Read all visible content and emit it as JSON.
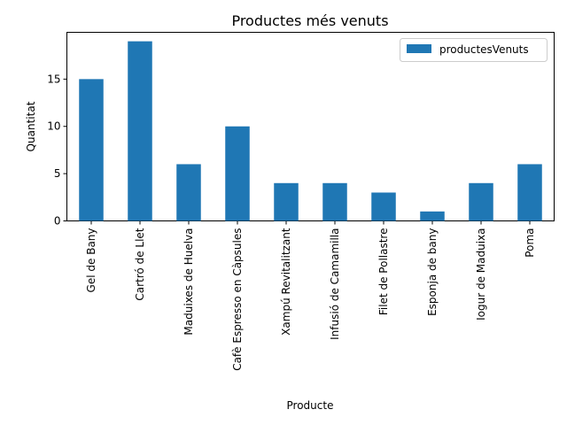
{
  "chart_data": {
    "type": "bar",
    "title": "Productes més venuts",
    "xlabel": "Producte",
    "ylabel": "Quantitat",
    "categories": [
      "Gel de Bany",
      "Cartró de Llet",
      "Maduixes de Huelva",
      "Cafè Espresso en Càpsules",
      "Xampú Revitalitzant",
      "Infusió de Camamilla",
      "Filet de Pollastre",
      "Esponja de bany",
      "Iogur de Maduixa",
      "Poma"
    ],
    "series": [
      {
        "name": "productesVenuts",
        "values": [
          15,
          19,
          6,
          10,
          4,
          4,
          3,
          1,
          4,
          6
        ],
        "color": "#1f77b4"
      }
    ],
    "yticks": [
      "0",
      "5",
      "10",
      "15"
    ],
    "ylim": [
      0,
      19.95
    ],
    "grid": false,
    "legend_position": "top-right"
  }
}
